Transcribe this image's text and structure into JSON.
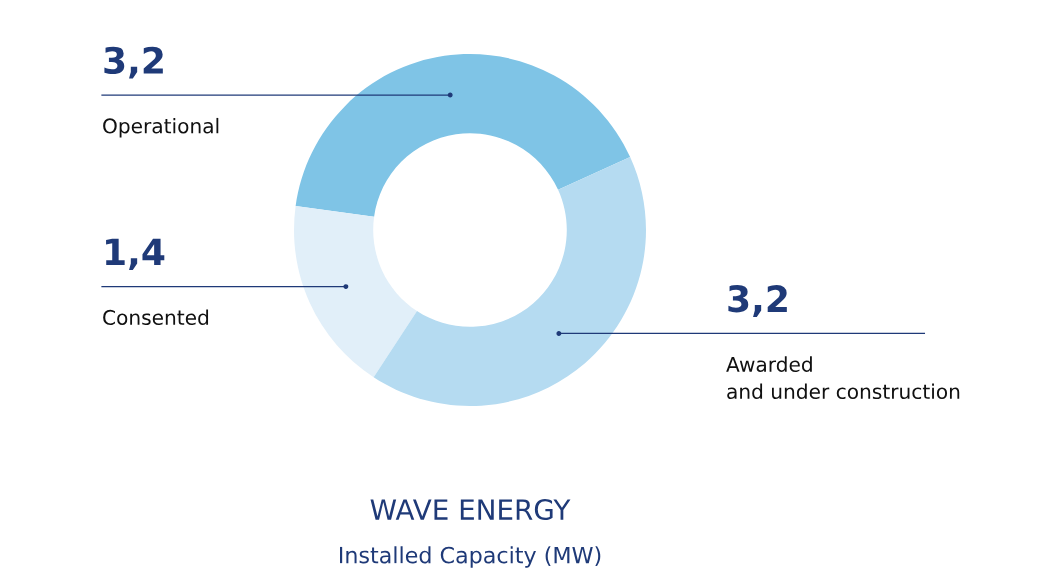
{
  "chart_data": {
    "type": "donut",
    "title": "WAVE ENERGY",
    "subtitle": "Installed Capacity (MW)",
    "categories": [
      "Operational",
      "Consented",
      "Awarded\nand under construction"
    ],
    "values": [
      3.2,
      1.4,
      3.2
    ],
    "value_labels": [
      "3,2",
      "1,4",
      "3,2"
    ],
    "colors": [
      "#7fc4e6",
      "#e1eff9",
      "#b5dbf1"
    ],
    "legend": false
  }
}
